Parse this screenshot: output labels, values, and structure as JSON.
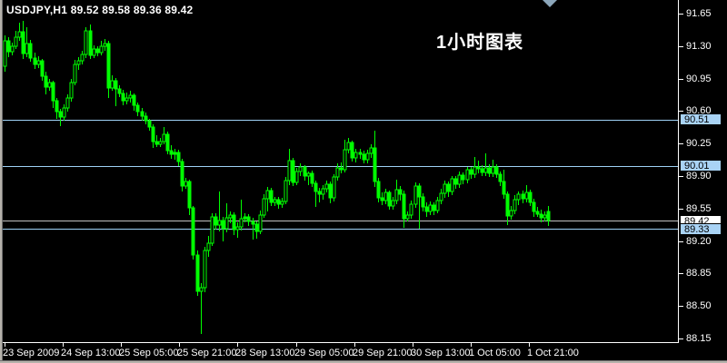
{
  "window": {
    "title": "USDJPY,H1 89.52 89.58 89.36 89.42",
    "annotation": "1小时图表"
  },
  "chart_data": {
    "type": "candlestick",
    "symbol_period": "USDJPY,H1",
    "current_bar": {
      "open": "89.52",
      "high": "89.58",
      "low": "89.36",
      "close": "89.42"
    },
    "x_labels": [
      "23 Sep 2009",
      "24 Sep 13:00",
      "25 Sep 05:00",
      "25 Sep 21:00",
      "28 Sep 13:00",
      "29 Sep 05:00",
      "29 Sep 21:00",
      "30 Sep 13:00",
      "1 Oct 05:00",
      "1 Oct 21:00"
    ],
    "y_ticks": [
      91.65,
      91.3,
      90.95,
      90.6,
      90.25,
      89.9,
      89.55,
      89.2,
      88.85,
      88.5,
      88.15
    ],
    "ylim": [
      88.15,
      91.65
    ],
    "legend_position": "none",
    "grid": false,
    "levels": [
      {
        "value": 90.51,
        "label": "90.51",
        "kind": "horizontal-line"
      },
      {
        "value": 90.01,
        "label": "90.01",
        "kind": "horizontal-line"
      },
      {
        "value": 89.42,
        "label": "89.42",
        "kind": "current-price"
      },
      {
        "value": 89.33,
        "label": "89.33",
        "kind": "horizontal-line"
      }
    ],
    "colors": {
      "background": "#000000",
      "candle": "#00ff00",
      "axis_text": "#ffffff",
      "axis_line": "#ffffff",
      "level_line": "#9ed1f5",
      "level_label_bg": "#a9d3f5",
      "current_line": "#c0c0c0",
      "current_label_bg": "#ffffff",
      "marker": "#8ca6ba"
    },
    "candles": [
      [
        91.08,
        91.42,
        91.02,
        91.36
      ],
      [
        91.36,
        91.4,
        91.18,
        91.24
      ],
      [
        91.24,
        91.34,
        91.2,
        91.3
      ],
      [
        91.3,
        91.46,
        91.27,
        91.4
      ],
      [
        91.4,
        91.55,
        91.36,
        91.45
      ],
      [
        91.45,
        91.57,
        91.16,
        91.22
      ],
      [
        91.22,
        91.5,
        91.18,
        91.33
      ],
      [
        91.33,
        91.37,
        91.13,
        91.17
      ],
      [
        91.17,
        91.23,
        91.05,
        91.1
      ],
      [
        91.1,
        91.19,
        91.06,
        91.14
      ],
      [
        91.14,
        91.16,
        90.93,
        90.98
      ],
      [
        90.98,
        91.02,
        90.78,
        90.86
      ],
      [
        90.86,
        90.95,
        90.82,
        90.91
      ],
      [
        90.91,
        90.93,
        90.63,
        90.71
      ],
      [
        90.71,
        90.74,
        90.52,
        90.59
      ],
      [
        90.59,
        90.62,
        90.44,
        90.54
      ],
      [
        90.54,
        90.67,
        90.5,
        90.63
      ],
      [
        90.63,
        90.78,
        90.59,
        90.74
      ],
      [
        90.74,
        90.95,
        90.7,
        90.91
      ],
      [
        90.91,
        91.15,
        90.88,
        91.1
      ],
      [
        91.1,
        91.18,
        91.04,
        91.14
      ],
      [
        91.14,
        91.25,
        91.1,
        91.21
      ],
      [
        91.21,
        91.5,
        91.17,
        91.46
      ],
      [
        91.46,
        91.53,
        91.16,
        91.2
      ],
      [
        91.2,
        91.31,
        91.17,
        91.27
      ],
      [
        91.27,
        91.3,
        91.19,
        91.23
      ],
      [
        91.23,
        91.36,
        91.2,
        91.3
      ],
      [
        91.3,
        91.38,
        91.25,
        91.33
      ],
      [
        91.33,
        91.36,
        90.74,
        90.85
      ],
      [
        90.85,
        90.99,
        90.82,
        90.93
      ],
      [
        90.93,
        90.96,
        90.65,
        90.84
      ],
      [
        90.84,
        90.88,
        90.75,
        90.79
      ],
      [
        90.79,
        90.83,
        90.66,
        90.71
      ],
      [
        90.71,
        90.8,
        90.67,
        90.74
      ],
      [
        90.74,
        90.82,
        90.69,
        90.77
      ],
      [
        90.77,
        90.79,
        90.6,
        90.66
      ],
      [
        90.66,
        90.69,
        90.55,
        90.59
      ],
      [
        90.59,
        90.63,
        90.5,
        90.55
      ],
      [
        90.55,
        90.58,
        90.46,
        90.5
      ],
      [
        90.5,
        90.52,
        90.39,
        90.43
      ],
      [
        90.43,
        90.46,
        90.2,
        90.27
      ],
      [
        90.27,
        90.34,
        90.21,
        90.24
      ],
      [
        90.24,
        90.31,
        90.21,
        90.27
      ],
      [
        90.27,
        90.43,
        90.24,
        90.35
      ],
      [
        90.35,
        90.38,
        90.13,
        90.17
      ],
      [
        90.17,
        90.23,
        90.09,
        90.13
      ],
      [
        90.13,
        90.19,
        90.08,
        90.15
      ],
      [
        90.15,
        90.18,
        90.01,
        90.06
      ],
      [
        90.06,
        90.09,
        89.73,
        89.79
      ],
      [
        89.79,
        89.88,
        89.76,
        89.84
      ],
      [
        89.84,
        89.86,
        89.48,
        89.56
      ],
      [
        89.56,
        89.58,
        89.0,
        89.05
      ],
      [
        89.05,
        89.1,
        88.61,
        88.66
      ],
      [
        88.66,
        88.75,
        88.2,
        88.7
      ],
      [
        88.7,
        89.14,
        88.65,
        89.1
      ],
      [
        89.1,
        89.25,
        89.03,
        89.18
      ],
      [
        89.18,
        89.5,
        89.15,
        89.46
      ],
      [
        89.46,
        89.5,
        89.32,
        89.37
      ],
      [
        89.37,
        89.73,
        89.3,
        89.42
      ],
      [
        89.42,
        89.46,
        89.2,
        89.33
      ],
      [
        89.33,
        89.61,
        89.29,
        89.45
      ],
      [
        89.45,
        89.52,
        89.39,
        89.48
      ],
      [
        89.48,
        89.51,
        89.26,
        89.32
      ],
      [
        89.32,
        89.4,
        89.24,
        89.35
      ],
      [
        89.35,
        89.65,
        89.31,
        89.44
      ],
      [
        89.44,
        89.5,
        89.4,
        89.46
      ],
      [
        89.46,
        89.49,
        89.36,
        89.41
      ],
      [
        89.41,
        89.45,
        89.22,
        89.38
      ],
      [
        89.38,
        89.41,
        89.23,
        89.3
      ],
      [
        89.3,
        89.53,
        89.27,
        89.48
      ],
      [
        89.48,
        89.7,
        89.45,
        89.66
      ],
      [
        89.66,
        89.78,
        89.52,
        89.74
      ],
      [
        89.74,
        89.77,
        89.58,
        89.62
      ],
      [
        89.62,
        89.68,
        89.58,
        89.65
      ],
      [
        89.65,
        89.68,
        89.55,
        89.6
      ],
      [
        89.6,
        89.67,
        89.56,
        89.63
      ],
      [
        89.63,
        89.89,
        89.6,
        89.85
      ],
      [
        89.85,
        90.19,
        89.8,
        90.07
      ],
      [
        90.07,
        90.1,
        89.79,
        89.83
      ],
      [
        89.83,
        89.99,
        89.8,
        89.95
      ],
      [
        89.95,
        90.04,
        89.9,
        90.0
      ],
      [
        90.0,
        90.02,
        89.85,
        89.9
      ],
      [
        89.9,
        89.95,
        89.8,
        89.93
      ],
      [
        89.93,
        89.96,
        89.78,
        89.82
      ],
      [
        89.82,
        89.85,
        89.57,
        89.73
      ],
      [
        89.73,
        89.77,
        89.62,
        89.7
      ],
      [
        89.7,
        89.8,
        89.65,
        89.76
      ],
      [
        89.76,
        89.85,
        89.72,
        89.81
      ],
      [
        89.81,
        89.84,
        89.61,
        89.67
      ],
      [
        89.67,
        89.92,
        89.63,
        89.89
      ],
      [
        89.89,
        90.04,
        89.85,
        89.99
      ],
      [
        89.99,
        90.05,
        89.93,
        89.97
      ],
      [
        89.97,
        90.29,
        89.94,
        90.18
      ],
      [
        90.18,
        90.31,
        90.14,
        90.26
      ],
      [
        90.26,
        90.28,
        90.06,
        90.1
      ],
      [
        90.1,
        90.19,
        90.05,
        90.15
      ],
      [
        90.15,
        90.19,
        90.09,
        90.13
      ],
      [
        90.13,
        90.17,
        90.04,
        90.08
      ],
      [
        90.08,
        90.18,
        90.04,
        90.14
      ],
      [
        90.14,
        90.24,
        90.1,
        90.2
      ],
      [
        90.2,
        90.39,
        89.78,
        89.84
      ],
      [
        89.84,
        89.88,
        89.62,
        89.67
      ],
      [
        89.67,
        89.72,
        89.59,
        89.64
      ],
      [
        89.64,
        89.76,
        89.6,
        89.72
      ],
      [
        89.72,
        89.74,
        89.54,
        89.58
      ],
      [
        89.58,
        89.68,
        89.54,
        89.64
      ],
      [
        89.64,
        89.86,
        89.6,
        89.75
      ],
      [
        89.75,
        89.79,
        89.64,
        89.7
      ],
      [
        89.7,
        89.74,
        89.34,
        89.44
      ],
      [
        89.44,
        89.52,
        89.41,
        89.48
      ],
      [
        89.48,
        89.64,
        89.44,
        89.6
      ],
      [
        89.6,
        89.83,
        89.56,
        89.79
      ],
      [
        89.79,
        89.82,
        89.33,
        89.68
      ],
      [
        89.68,
        89.71,
        89.52,
        89.57
      ],
      [
        89.57,
        89.62,
        89.46,
        89.52
      ],
      [
        89.52,
        89.63,
        89.48,
        89.59
      ],
      [
        89.59,
        89.62,
        89.48,
        89.53
      ],
      [
        89.53,
        89.68,
        89.5,
        89.64
      ],
      [
        89.64,
        89.76,
        89.6,
        89.71
      ],
      [
        89.71,
        89.85,
        89.67,
        89.81
      ],
      [
        89.81,
        89.84,
        89.68,
        89.73
      ],
      [
        89.73,
        89.9,
        89.69,
        89.87
      ],
      [
        89.87,
        89.9,
        89.76,
        89.81
      ],
      [
        89.81,
        89.95,
        89.77,
        89.91
      ],
      [
        89.91,
        89.94,
        89.81,
        89.86
      ],
      [
        89.86,
        90.0,
        89.82,
        89.97
      ],
      [
        89.97,
        90.0,
        89.87,
        89.92
      ],
      [
        89.92,
        90.11,
        89.88,
        90.0
      ],
      [
        90.0,
        90.07,
        89.93,
        89.98
      ],
      [
        89.98,
        90.02,
        89.9,
        89.94
      ],
      [
        89.94,
        90.14,
        89.9,
        89.99
      ],
      [
        89.99,
        90.03,
        89.89,
        89.93
      ],
      [
        89.93,
        90.08,
        89.89,
        90.0
      ],
      [
        90.0,
        90.03,
        89.88,
        89.92
      ],
      [
        89.92,
        89.95,
        89.79,
        89.84
      ],
      [
        89.84,
        89.97,
        89.66,
        89.7
      ],
      [
        89.7,
        89.73,
        89.37,
        89.47
      ],
      [
        89.47,
        89.58,
        89.43,
        89.53
      ],
      [
        89.53,
        89.69,
        89.49,
        89.65
      ],
      [
        89.65,
        89.73,
        89.59,
        89.7
      ],
      [
        89.7,
        89.74,
        89.61,
        89.66
      ],
      [
        89.66,
        89.8,
        89.62,
        89.72
      ],
      [
        89.72,
        89.75,
        89.58,
        89.62
      ],
      [
        89.62,
        89.66,
        89.46,
        89.52
      ],
      [
        89.52,
        89.57,
        89.46,
        89.49
      ],
      [
        89.49,
        89.54,
        89.4,
        89.45
      ],
      [
        89.45,
        89.52,
        89.41,
        89.48
      ],
      [
        89.52,
        89.58,
        89.36,
        89.42
      ]
    ]
  }
}
